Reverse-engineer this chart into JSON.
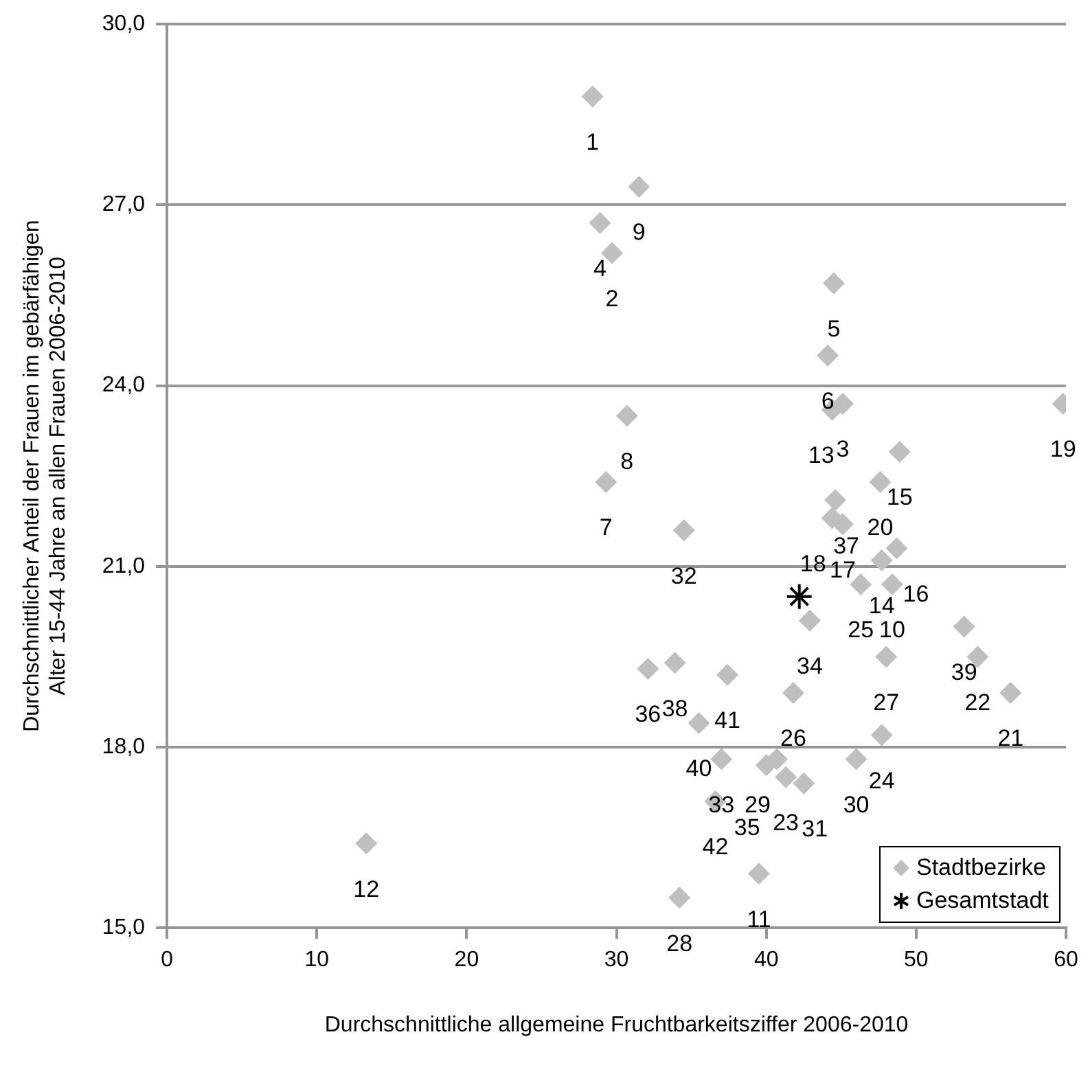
{
  "chart_data": {
    "type": "scatter",
    "xlabel": "Durchschnittliche allgemeine Fruchtbarkeitsziffer 2006-2010",
    "ylabel": "Durchschnittlicher Anteil der Frauen im gebärfähigen Alter 15-44 Jahre an allen Frauen 2006-2010",
    "xlim": [
      0,
      60
    ],
    "xticks": [
      0,
      10,
      20,
      30,
      40,
      50,
      60
    ],
    "ylim": [
      15,
      30
    ],
    "yticks": [
      {
        "value": 15,
        "label": "15,0"
      },
      {
        "value": 18,
        "label": "18,0"
      },
      {
        "value": 21,
        "label": "21,0"
      },
      {
        "value": 24,
        "label": "24,0"
      },
      {
        "value": 27,
        "label": "27,0"
      },
      {
        "value": 30,
        "label": "30,0"
      }
    ],
    "grid": "y",
    "legend": "bottom right",
    "series": [
      {
        "name": "Stadtbezirke",
        "color": "#bfbfbf",
        "marker": "diamond",
        "x": [
          28.4,
          29.7,
          45.1,
          28.9,
          44.5,
          44.1,
          29.3,
          30.7,
          31.5,
          48.4,
          39.5,
          13.3,
          44.4,
          47.7,
          48.9,
          48.7,
          45.1,
          44.4,
          59.8,
          47.6,
          56.3,
          54.1,
          41.3,
          47.7,
          46.3,
          41.8,
          48.0,
          34.2,
          40.7,
          46.0,
          42.5,
          34.5,
          37.0,
          42.9,
          40.0,
          32.1,
          44.6,
          33.9,
          53.2,
          35.5,
          37.4,
          36.6
        ],
        "values": [
          28.8,
          26.2,
          23.7,
          26.7,
          25.7,
          24.5,
          22.4,
          23.5,
          27.3,
          20.7,
          15.9,
          16.4,
          23.6,
          21.1,
          22.9,
          21.3,
          21.7,
          21.8,
          23.7,
          22.4,
          18.9,
          19.5,
          17.5,
          18.2,
          20.7,
          18.9,
          19.5,
          15.5,
          17.8,
          17.8,
          17.4,
          21.6,
          17.8,
          20.1,
          17.7,
          19.3,
          22.1,
          19.4,
          20.0,
          18.4,
          19.2,
          17.1
        ]
      },
      {
        "name": "Gesamtstadt",
        "color": "#000000",
        "marker": "cross",
        "x": [
          42.2
        ],
        "values": [
          20.5
        ]
      }
    ],
    "annotations": [
      {
        "text": "1",
        "x": 28.4,
        "y": 28.8
      },
      {
        "text": "2",
        "x": 29.7,
        "y": 26.2
      },
      {
        "text": "3",
        "x": 45.1,
        "y": 23.7
      },
      {
        "text": "4",
        "x": 28.9,
        "y": 26.7
      },
      {
        "text": "5",
        "x": 44.5,
        "y": 25.7
      },
      {
        "text": "6",
        "x": 44.1,
        "y": 24.5
      },
      {
        "text": "7",
        "x": 29.3,
        "y": 22.4
      },
      {
        "text": "8",
        "x": 30.7,
        "y": 23.5
      },
      {
        "text": "9",
        "x": 31.5,
        "y": 27.3
      },
      {
        "text": "10",
        "x": 48.4,
        "y": 20.7
      },
      {
        "text": "11",
        "x": 39.5,
        "y": 15.9
      },
      {
        "text": "12",
        "x": 13.3,
        "y": 16.4
      },
      {
        "text": "13",
        "x": 44.4,
        "y": 23.6
      },
      {
        "text": "14",
        "x": 47.7,
        "y": 21.1
      },
      {
        "text": "15",
        "x": 48.9,
        "y": 22.9
      },
      {
        "text": "16",
        "x": 48.7,
        "y": 21.3
      },
      {
        "text": "17",
        "x": 45.1,
        "y": 21.7
      },
      {
        "text": "18",
        "x": 44.4,
        "y": 21.8
      },
      {
        "text": "19",
        "x": 59.8,
        "y": 23.7
      },
      {
        "text": "20",
        "x": 47.6,
        "y": 22.4
      },
      {
        "text": "21",
        "x": 56.3,
        "y": 18.9
      },
      {
        "text": "22",
        "x": 54.1,
        "y": 19.5
      },
      {
        "text": "23",
        "x": 41.3,
        "y": 17.5
      },
      {
        "text": "24",
        "x": 47.7,
        "y": 18.2
      },
      {
        "text": "25",
        "x": 46.3,
        "y": 20.7
      },
      {
        "text": "26",
        "x": 41.8,
        "y": 18.9
      },
      {
        "text": "27",
        "x": 48.0,
        "y": 19.5
      },
      {
        "text": "28",
        "x": 34.2,
        "y": 15.5
      },
      {
        "text": "29",
        "x": 40.7,
        "y": 17.8
      },
      {
        "text": "30",
        "x": 46.0,
        "y": 17.8
      },
      {
        "text": "31",
        "x": 42.5,
        "y": 17.4
      },
      {
        "text": "32",
        "x": 34.5,
        "y": 21.6
      },
      {
        "text": "33",
        "x": 37.0,
        "y": 17.8
      },
      {
        "text": "34",
        "x": 42.9,
        "y": 20.1
      },
      {
        "text": "35",
        "x": 40.0,
        "y": 17.7
      },
      {
        "text": "36",
        "x": 32.1,
        "y": 19.3
      },
      {
        "text": "37",
        "x": 44.6,
        "y": 22.1
      },
      {
        "text": "38",
        "x": 33.9,
        "y": 19.4
      },
      {
        "text": "39",
        "x": 53.2,
        "y": 20.0
      },
      {
        "text": "40",
        "x": 35.5,
        "y": 18.4
      },
      {
        "text": "41",
        "x": 37.4,
        "y": 19.2
      },
      {
        "text": "42",
        "x": 36.6,
        "y": 17.1
      }
    ]
  }
}
